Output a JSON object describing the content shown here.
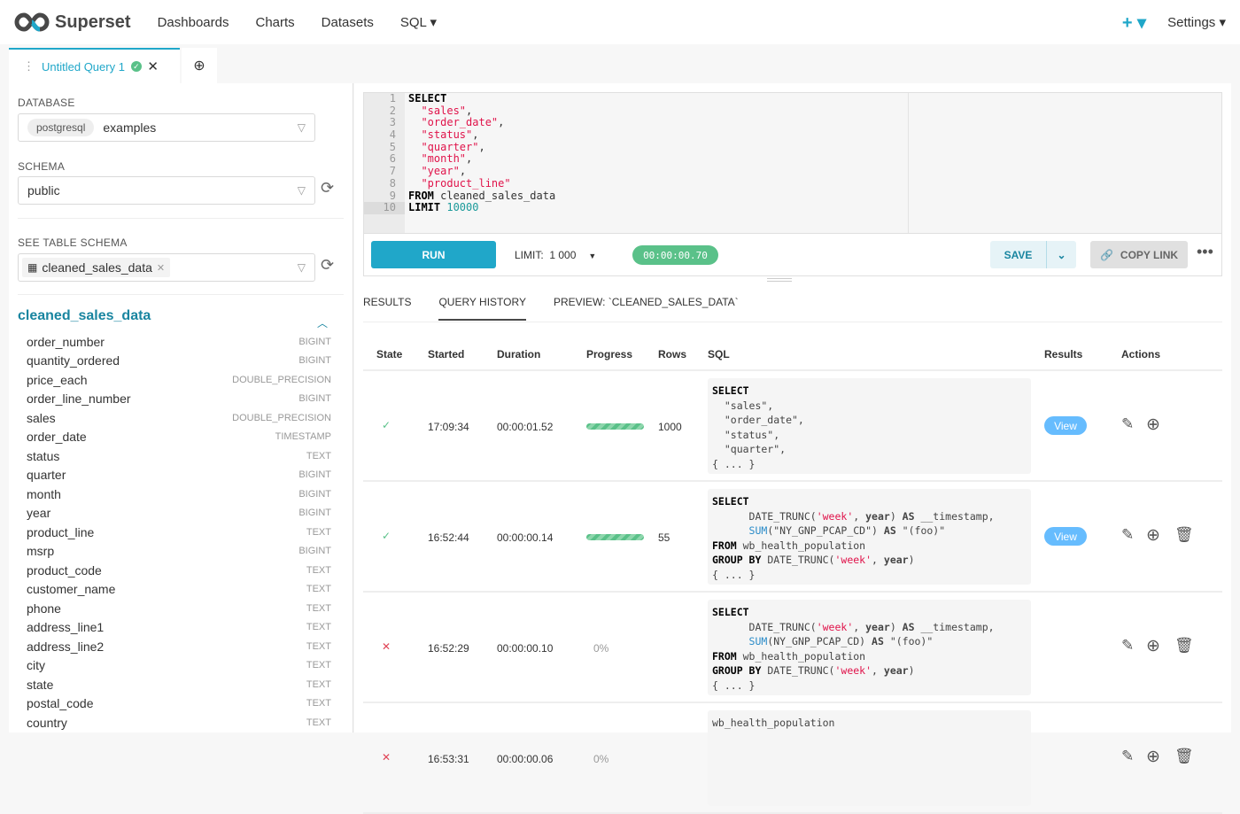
{
  "nav": {
    "brand": "Superset",
    "items": [
      "Dashboards",
      "Charts",
      "Datasets",
      "SQL ▾"
    ],
    "plus": "+ ▾",
    "settings": "Settings ▾"
  },
  "tab": {
    "title": "Untitled Query 1",
    "add": "⊕"
  },
  "left": {
    "database_label": "DATABASE",
    "db_engine": "postgresql",
    "db_name": "examples",
    "schema_label": "SCHEMA",
    "schema": "public",
    "table_label": "SEE TABLE SCHEMA",
    "table": "cleaned_sales_data",
    "table_name": "cleaned_sales_data",
    "columns": [
      {
        "name": "order_number",
        "type": "BIGINT"
      },
      {
        "name": "quantity_ordered",
        "type": "BIGINT"
      },
      {
        "name": "price_each",
        "type": "DOUBLE_PRECISION"
      },
      {
        "name": "order_line_number",
        "type": "BIGINT"
      },
      {
        "name": "sales",
        "type": "DOUBLE_PRECISION"
      },
      {
        "name": "order_date",
        "type": "TIMESTAMP"
      },
      {
        "name": "status",
        "type": "TEXT"
      },
      {
        "name": "quarter",
        "type": "BIGINT"
      },
      {
        "name": "month",
        "type": "BIGINT"
      },
      {
        "name": "year",
        "type": "BIGINT"
      },
      {
        "name": "product_line",
        "type": "TEXT"
      },
      {
        "name": "msrp",
        "type": "BIGINT"
      },
      {
        "name": "product_code",
        "type": "TEXT"
      },
      {
        "name": "customer_name",
        "type": "TEXT"
      },
      {
        "name": "phone",
        "type": "TEXT"
      },
      {
        "name": "address_line1",
        "type": "TEXT"
      },
      {
        "name": "address_line2",
        "type": "TEXT"
      },
      {
        "name": "city",
        "type": "TEXT"
      },
      {
        "name": "state",
        "type": "TEXT"
      },
      {
        "name": "postal_code",
        "type": "TEXT"
      },
      {
        "name": "country",
        "type": "TEXT"
      }
    ]
  },
  "editor": {
    "lines": [
      [
        [
          "SELECT",
          "kw"
        ]
      ],
      [
        [
          "  "
        ],
        [
          "\"sales\"",
          "str"
        ],
        [
          ","
        ]
      ],
      [
        [
          "  "
        ],
        [
          "\"order_date\"",
          "str"
        ],
        [
          ","
        ]
      ],
      [
        [
          "  "
        ],
        [
          "\"status\"",
          "str"
        ],
        [
          ","
        ]
      ],
      [
        [
          "  "
        ],
        [
          "\"quarter\"",
          "str"
        ],
        [
          ","
        ]
      ],
      [
        [
          "  "
        ],
        [
          "\"month\"",
          "str"
        ],
        [
          ","
        ]
      ],
      [
        [
          "  "
        ],
        [
          "\"year\"",
          "str"
        ],
        [
          ","
        ]
      ],
      [
        [
          "  "
        ],
        [
          "\"product_line\"",
          "str"
        ]
      ],
      [
        [
          "FROM",
          "kw"
        ],
        [
          " cleaned_sales_data"
        ]
      ],
      [
        [
          "LIMIT",
          "kw"
        ],
        [
          " "
        ],
        [
          "10000",
          "num"
        ]
      ]
    ]
  },
  "toolbar": {
    "run": "RUN",
    "limit_label": "LIMIT:",
    "limit_value": "1 000",
    "timer": "00:00:00.70",
    "save": "SAVE",
    "copy_link": "COPY LINK"
  },
  "result_tabs": [
    "RESULTS",
    "QUERY HISTORY",
    "PREVIEW: `CLEANED_SALES_DATA`"
  ],
  "active_tab": 1,
  "history": {
    "headers": [
      "State",
      "Started",
      "Duration",
      "Progress",
      "Rows",
      "SQL",
      "Results",
      "Actions"
    ],
    "rows": [
      {
        "state": "success",
        "started": "17:09:34",
        "duration": "00:00:01.52",
        "progress": 100,
        "progress_text": "",
        "rows": "1000",
        "view": "View",
        "delete": false,
        "sql": [
          [
            [
              "SELECT",
              "kw"
            ]
          ],
          [
            [
              "  \"sales\","
            ]
          ],
          [
            [
              "  \"order_date\","
            ]
          ],
          [
            [
              "  \"status\","
            ]
          ],
          [
            [
              "  \"quarter\","
            ]
          ],
          [
            [
              "{ ... }"
            ]
          ]
        ]
      },
      {
        "state": "success",
        "started": "16:52:44",
        "duration": "00:00:00.14",
        "progress": 100,
        "progress_text": "",
        "rows": "55",
        "view": "View",
        "delete": true,
        "sql": [
          [
            [
              "SELECT",
              "kw"
            ]
          ],
          [
            [
              "      DATE_TRUNC("
            ],
            [
              "'week'",
              "str"
            ],
            [
              ", "
            ],
            [
              "year",
              "bd"
            ],
            [
              ") "
            ],
            [
              "AS",
              "bd"
            ],
            [
              " __timestamp,"
            ]
          ],
          [
            [
              "      "
            ],
            [
              "SUM",
              "fn"
            ],
            [
              "(\"NY_GNP_PCAP_CD\") "
            ],
            [
              "AS",
              "bd"
            ],
            [
              " \"(foo)\""
            ]
          ],
          [
            [
              "FROM",
              "kw"
            ],
            [
              " wb_health_population"
            ]
          ],
          [
            [
              "GROUP BY",
              "kw"
            ],
            [
              " DATE_TRUNC("
            ],
            [
              "'week'",
              "str"
            ],
            [
              ", "
            ],
            [
              "year",
              "bd"
            ],
            [
              ")"
            ]
          ],
          [
            [
              "{ ... }"
            ]
          ]
        ]
      },
      {
        "state": "failed",
        "started": "16:52:29",
        "duration": "00:00:00.10",
        "progress": 0,
        "progress_text": "0%",
        "rows": "",
        "view": "",
        "delete": true,
        "sql": [
          [
            [
              "SELECT",
              "kw"
            ]
          ],
          [
            [
              "      DATE_TRUNC("
            ],
            [
              "'week'",
              "str"
            ],
            [
              ", "
            ],
            [
              "year",
              "bd"
            ],
            [
              ") "
            ],
            [
              "AS",
              "bd"
            ],
            [
              " __timestamp,"
            ]
          ],
          [
            [
              "      "
            ],
            [
              "SUM",
              "fn"
            ],
            [
              "(NY_GNP_PCAP_CD) "
            ],
            [
              "AS",
              "bd"
            ],
            [
              " \"(foo)\""
            ]
          ],
          [
            [
              "FROM",
              "kw"
            ],
            [
              " wb_health_population"
            ]
          ],
          [
            [
              "GROUP BY",
              "kw"
            ],
            [
              " DATE_TRUNC("
            ],
            [
              "'week'",
              "str"
            ],
            [
              ", "
            ],
            [
              "year",
              "bd"
            ],
            [
              ")"
            ]
          ],
          [
            [
              "{ ... }"
            ]
          ]
        ]
      },
      {
        "state": "failed",
        "started": "16:53:31",
        "duration": "00:00:00.06",
        "progress": 0,
        "progress_text": "0%",
        "rows": "",
        "view": "",
        "delete": true,
        "sql": [
          [
            [
              "wb_health_population"
            ]
          ]
        ]
      }
    ]
  },
  "colors": {
    "accent": "#20a7c9",
    "success": "#5ac189",
    "error": "#e04355",
    "view": "#66bcfe"
  }
}
